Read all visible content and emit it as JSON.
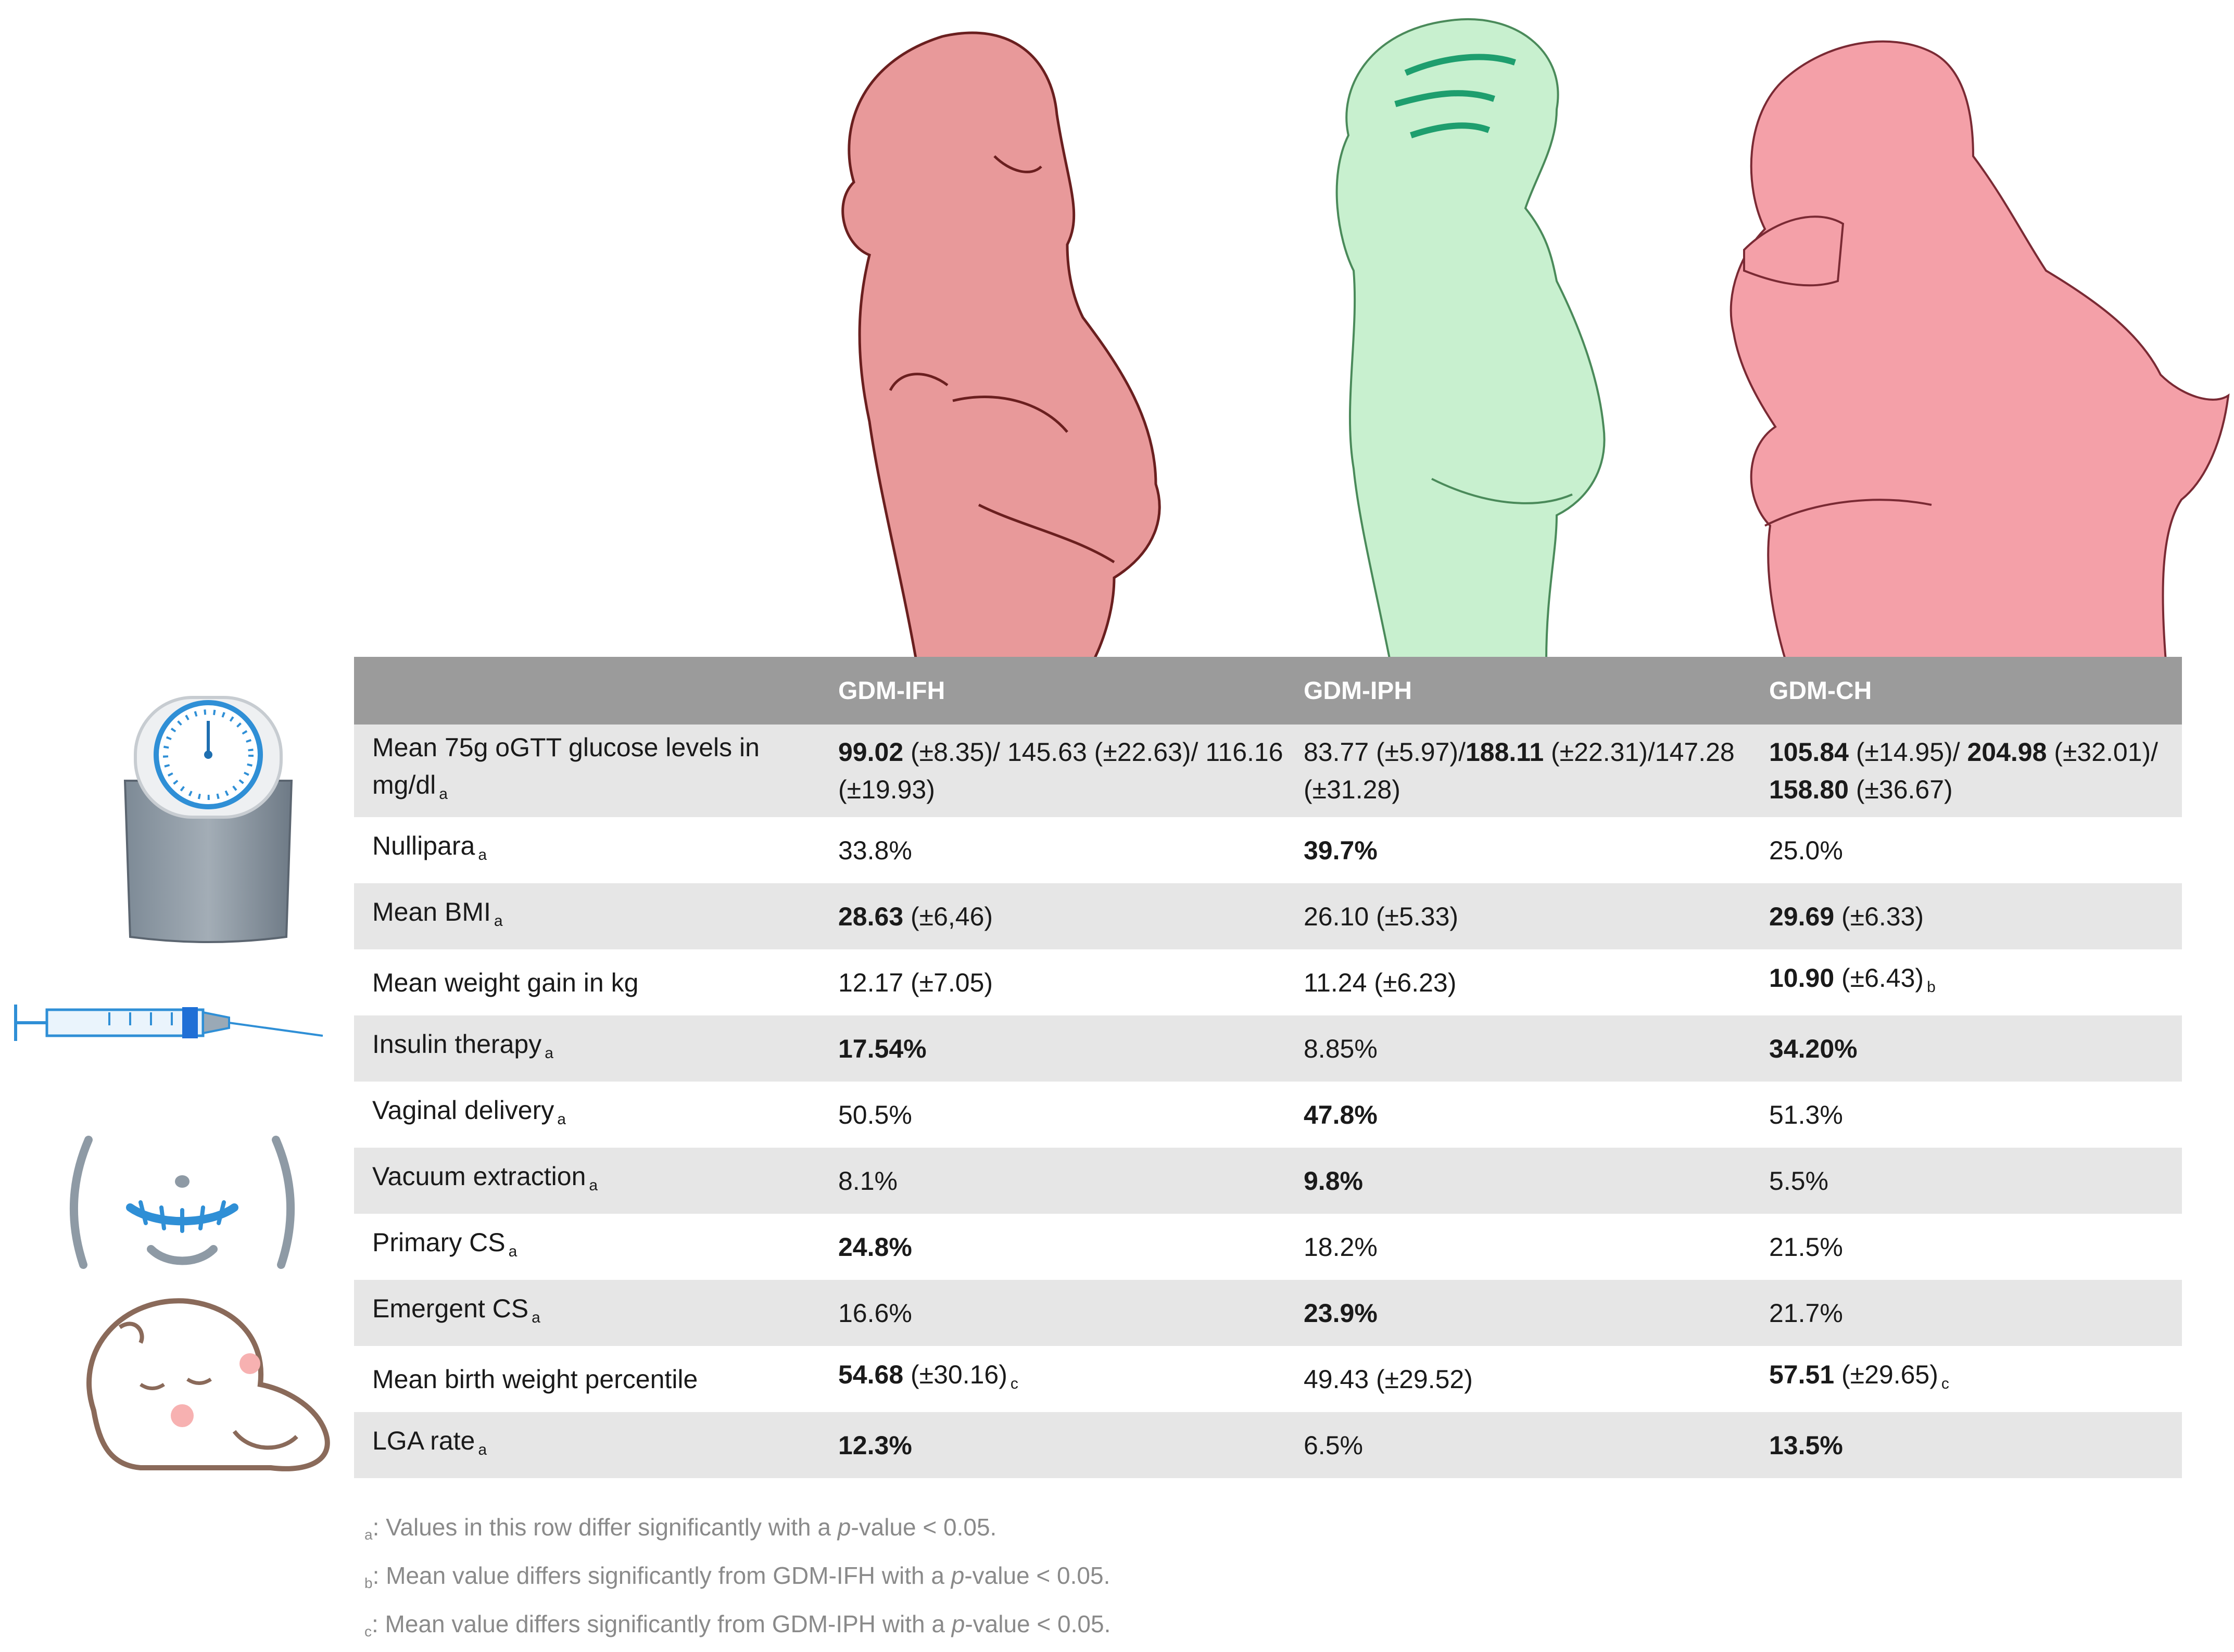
{
  "colors": {
    "header_bg": "#9b9b9b",
    "row_alt_bg": "#e6e6e6",
    "ifh_figure": "#e8999a",
    "iph_figure": "#c8f0cf",
    "ch_figure": "#f4a0a8"
  },
  "header": {
    "col0": "",
    "col1": "GDM-IFH",
    "col2": "GDM-IPH",
    "col3": "GDM-CH"
  },
  "rows": [
    {
      "label": "Mean 75g oGTT glucose levels in mg/dl",
      "sub": "a",
      "ifh": {
        "b1": "99.02",
        "t1": " (±8.35)/ 145.63 (±22.63)/ 116.16 (±19.93)"
      },
      "iph": {
        "t1": "83.77 (±5.97)/",
        "b1": "188.11",
        "t2": " (±22.31)/147.28  (±31.28)"
      },
      "ch": {
        "b1": "105.84",
        "t1": " (±14.95)/ ",
        "b2": "204.98",
        "t2": " (±32.01)/ ",
        "b3": "158.80",
        "t3": " (±36.67)"
      }
    },
    {
      "label": "Nullipara",
      "sub": "a",
      "ifh": "33.8%",
      "iph": "39.7%",
      "ch": "25.0%"
    },
    {
      "label": "Mean BMI",
      "sub": "a",
      "ifh_b": "28.63",
      "ifh_t": " (±6,46)",
      "iph": "26.10 (±5.33)",
      "ch_b": "29.69",
      "ch_t": " (±6.33)"
    },
    {
      "label": "Mean weight gain in kg",
      "ifh": "12.17 (±7.05)",
      "iph": "11.24 (±6.23)",
      "ch_b": "10.90",
      "ch_t": " (±6.43)",
      "ch_sub": "b"
    },
    {
      "label": "Insulin therapy",
      "sub": "a",
      "ifh": "17.54%",
      "iph": "8.85%",
      "ch": "34.20%"
    },
    {
      "label": "Vaginal delivery",
      "sub": "a",
      "ifh": "50.5%",
      "iph": "47.8%",
      "ch": "51.3%"
    },
    {
      "label": "Vacuum extraction",
      "sub": "a",
      "ifh": "8.1%",
      "iph": "9.8%",
      "ch": "5.5%"
    },
    {
      "label": "Primary CS",
      "sub": "a",
      "ifh": "24.8%",
      "iph": "18.2%",
      "ch": "21.5%"
    },
    {
      "label": "Emergent CS",
      "sub": "a",
      "ifh": "16.6%",
      "iph": "23.9%",
      "ch": "21.7%"
    },
    {
      "label": "Mean birth weight percentile",
      "ifh_b": "54.68",
      "ifh_t": " (±30.16)",
      "ifh_sub": "c",
      "iph": "49.43 (±29.52)",
      "ch_b": "57.51",
      "ch_t": " (±29.65)",
      "ch_sub": "c"
    },
    {
      "label": "LGA rate",
      "sub": "a",
      "ifh": "12.3%",
      "iph": "6.5%",
      "ch": "13.5%"
    }
  ],
  "footnotes": [
    {
      "mark": "a",
      "pre": ": Values in this row differ significantly with a ",
      "ital": "p",
      "post": "-value < 0.05."
    },
    {
      "mark": "b",
      "pre": ": Mean value differs significantly from GDM-IFH with a ",
      "ital": "p",
      "post": "-value < 0.05."
    },
    {
      "mark": "c",
      "pre": ": Mean value differs significantly from GDM-IPH with a ",
      "ital": "p",
      "post": "-value < 0.05."
    }
  ]
}
